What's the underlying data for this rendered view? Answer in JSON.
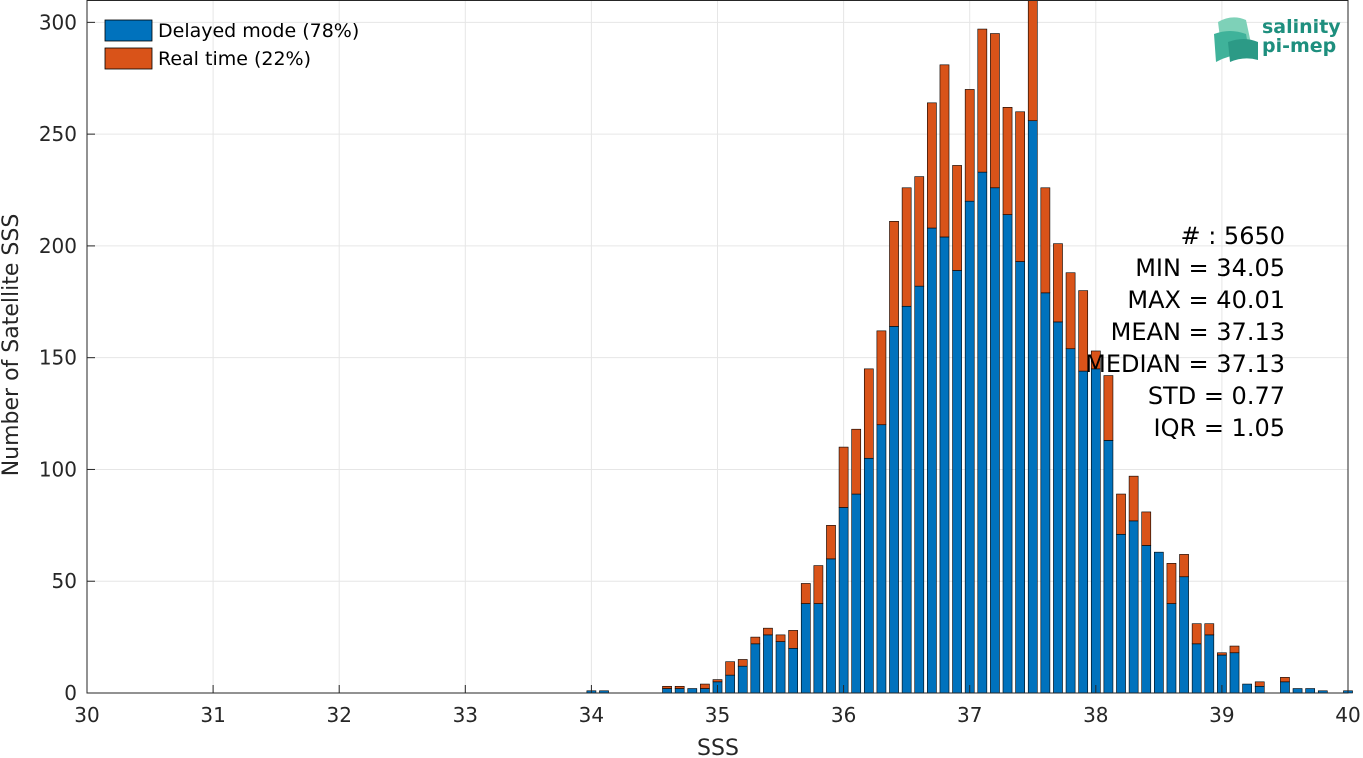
{
  "colors": {
    "delayed": "#0072BD",
    "realtime": "#D95319",
    "grid": "#e6e6e6",
    "axis": "#262626",
    "logo": "#1e8f7e"
  },
  "logo": {
    "line1": "salinity",
    "line2": "pi-mep"
  },
  "stats": [
    "# : 5650",
    "MIN = 34.05",
    "MAX =  40.01",
    "MEAN = 37.13",
    "MEDIAN = 37.13",
    "STD = 0.77",
    "IQR = 1.05"
  ],
  "chart_data": {
    "type": "bar",
    "stacked": true,
    "xlabel": "SSS",
    "ylabel": "Number of Satellite SSS",
    "xlim": [
      30,
      40
    ],
    "ylim": [
      0,
      310
    ],
    "xticks": [
      30,
      31,
      32,
      33,
      34,
      35,
      36,
      37,
      38,
      39,
      40
    ],
    "yticks": [
      0,
      50,
      100,
      150,
      200,
      250,
      300
    ],
    "grid": true,
    "legend_placement": "top-left",
    "bin_width": 0.1,
    "x": [
      34.0,
      34.1,
      34.6,
      34.7,
      34.8,
      34.9,
      35.0,
      35.1,
      35.2,
      35.3,
      35.4,
      35.5,
      35.6,
      35.7,
      35.8,
      35.9,
      36.0,
      36.1,
      36.2,
      36.3,
      36.4,
      36.5,
      36.6,
      36.7,
      36.8,
      36.9,
      37.0,
      37.1,
      37.2,
      37.3,
      37.4,
      37.5,
      37.6,
      37.7,
      37.8,
      37.9,
      38.0,
      38.1,
      38.2,
      38.3,
      38.4,
      38.5,
      38.6,
      38.7,
      38.8,
      38.9,
      39.0,
      39.1,
      39.2,
      39.3,
      39.5,
      39.6,
      39.7,
      39.8,
      40.0
    ],
    "series": [
      {
        "name": "Delayed mode (78%)",
        "values": [
          1,
          1,
          2,
          2,
          2,
          2,
          5,
          8,
          12,
          22,
          26,
          23,
          20,
          40,
          40,
          60,
          83,
          89,
          105,
          120,
          164,
          173,
          182,
          208,
          204,
          189,
          220,
          233,
          226,
          214,
          193,
          256,
          179,
          166,
          154,
          144,
          145,
          113,
          71,
          77,
          66,
          63,
          40,
          52,
          22,
          26,
          17,
          18,
          4,
          3,
          5,
          2,
          2,
          1,
          1
        ]
      },
      {
        "name": "Real time (22%)",
        "values": [
          0,
          0,
          1,
          1,
          0,
          2,
          1,
          6,
          3,
          3,
          3,
          3,
          8,
          9,
          17,
          15,
          27,
          29,
          40,
          42,
          47,
          53,
          49,
          56,
          77,
          47,
          50,
          64,
          69,
          48,
          67,
          55,
          47,
          35,
          34,
          36,
          8,
          29,
          18,
          20,
          15,
          0,
          18,
          10,
          9,
          5,
          1,
          3,
          0,
          2,
          2,
          0,
          0,
          0,
          0
        ]
      }
    ]
  }
}
